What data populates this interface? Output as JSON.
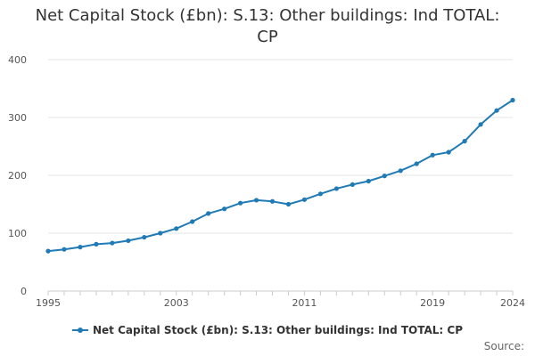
{
  "title": "Net Capital Stock (£bn): S.13: Other buildings: Ind TOTAL: CP",
  "source_label": "Source:",
  "colors": {
    "series": "#1f7ab5",
    "grid": "#e6e6e6",
    "axis": "#cccccc",
    "text": "#333333"
  },
  "chart_data": {
    "type": "line",
    "title": "Net Capital Stock (£bn): S.13: Other buildings: Ind TOTAL: CP",
    "xlabel": "",
    "ylabel": "",
    "x": [
      1995,
      1996,
      1997,
      1998,
      1999,
      2000,
      2001,
      2002,
      2003,
      2004,
      2005,
      2006,
      2007,
      2008,
      2009,
      2010,
      2011,
      2012,
      2013,
      2014,
      2015,
      2016,
      2017,
      2018,
      2019,
      2020,
      2021,
      2022,
      2023,
      2024
    ],
    "xticks": [
      1995,
      2003,
      2011,
      2019,
      2024
    ],
    "yticks": [
      0,
      100,
      200,
      300,
      400
    ],
    "ylim": [
      0,
      400
    ],
    "grid": true,
    "legend_position": "bottom",
    "series": [
      {
        "name": "Net Capital Stock (£bn): S.13: Other buildings: Ind TOTAL: CP",
        "values": [
          69,
          72,
          76,
          81,
          83,
          87,
          93,
          100,
          108,
          120,
          134,
          142,
          152,
          157,
          155,
          150,
          158,
          168,
          177,
          184,
          190,
          199,
          208,
          220,
          235,
          240,
          259,
          288,
          312,
          330
        ]
      }
    ]
  }
}
